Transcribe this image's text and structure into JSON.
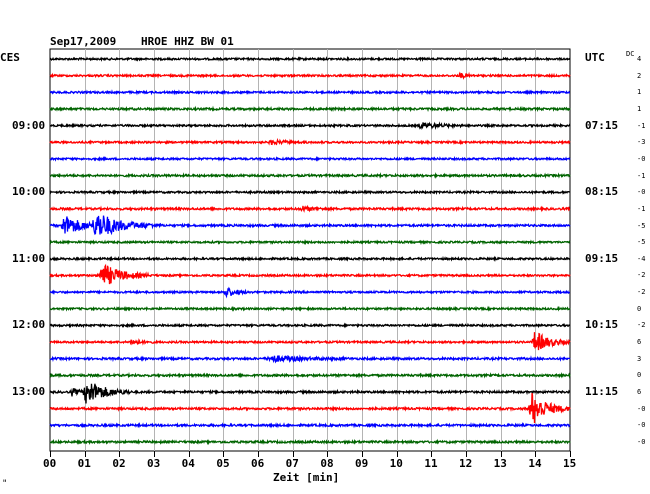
{
  "header": {
    "date": "Sep17,2009",
    "station": "HROE HHZ BW 01",
    "left_tz": "CES",
    "right_tz": "UTC",
    "dc_label": "DC"
  },
  "footer": {
    "xlabel": "Zeit [min]",
    "corner_mark": "\""
  },
  "chart_data": {
    "type": "seismogram",
    "xlabel": "Zeit [min]",
    "xlim": [
      0,
      15
    ],
    "x_ticks": [
      "00",
      "01",
      "02",
      "03",
      "04",
      "05",
      "06",
      "07",
      "08",
      "09",
      "10",
      "11",
      "12",
      "13",
      "14",
      "15"
    ],
    "grid": true,
    "line_minutes": 15,
    "colors": [
      "#000000",
      "#ff0000",
      "#0000ff",
      "#006400"
    ],
    "left_hour_labels": [
      {
        "line": 4,
        "text": "09:00"
      },
      {
        "line": 8,
        "text": "10:00"
      },
      {
        "line": 12,
        "text": "11:00"
      },
      {
        "line": 16,
        "text": "12:00"
      },
      {
        "line": 20,
        "text": "13:00"
      }
    ],
    "right_hour_labels": [
      {
        "line": 4,
        "text": "07:15"
      },
      {
        "line": 8,
        "text": "08:15"
      },
      {
        "line": 12,
        "text": "09:15"
      },
      {
        "line": 16,
        "text": "10:15"
      },
      {
        "line": 20,
        "text": "11:15"
      }
    ],
    "dc_offsets": [
      "4",
      "2",
      "1",
      "1",
      "-1",
      "-3",
      "-0",
      "-1",
      "-0",
      "-1",
      "-5",
      "-5",
      "-4",
      "-2",
      "-2",
      "0",
      "-2",
      "6",
      "3",
      "0",
      "6",
      "-0",
      "-0",
      "-0"
    ],
    "traces": [
      {
        "line": 0,
        "noise": 0.9,
        "events": []
      },
      {
        "line": 1,
        "noise": 0.9,
        "events": [
          {
            "t": 11.8,
            "amp": 2.5,
            "dur": 0.5
          }
        ]
      },
      {
        "line": 2,
        "noise": 0.9,
        "events": []
      },
      {
        "line": 3,
        "noise": 1.0,
        "events": []
      },
      {
        "line": 4,
        "noise": 0.9,
        "events": [
          {
            "t": 10.6,
            "amp": 3,
            "dur": 1.4
          }
        ]
      },
      {
        "line": 5,
        "noise": 0.9,
        "events": [
          {
            "t": 6.3,
            "amp": 2,
            "dur": 1.2
          }
        ]
      },
      {
        "line": 6,
        "noise": 0.9,
        "events": []
      },
      {
        "line": 7,
        "noise": 1.0,
        "events": []
      },
      {
        "line": 8,
        "noise": 0.9,
        "events": []
      },
      {
        "line": 9,
        "noise": 1.0,
        "events": [
          {
            "t": 7.2,
            "amp": 2.5,
            "dur": 0.8
          }
        ]
      },
      {
        "line": 10,
        "noise": 1.0,
        "events": [
          {
            "t": 0.3,
            "amp": 10,
            "dur": 1.5
          },
          {
            "t": 1.2,
            "amp": 12,
            "dur": 2.0
          }
        ]
      },
      {
        "line": 11,
        "noise": 0.9,
        "events": []
      },
      {
        "line": 12,
        "noise": 0.9,
        "events": []
      },
      {
        "line": 13,
        "noise": 0.9,
        "events": [
          {
            "t": 1.4,
            "amp": 12,
            "dur": 1.5
          }
        ]
      },
      {
        "line": 14,
        "noise": 0.9,
        "events": [
          {
            "t": 5.0,
            "amp": 5,
            "dur": 0.8
          }
        ]
      },
      {
        "line": 15,
        "noise": 0.9,
        "events": []
      },
      {
        "line": 16,
        "noise": 0.9,
        "events": []
      },
      {
        "line": 17,
        "noise": 0.9,
        "events": [
          {
            "t": 2.3,
            "amp": 3,
            "dur": 0.7
          },
          {
            "t": 13.9,
            "amp": 11,
            "dur": 1.1
          }
        ]
      },
      {
        "line": 18,
        "noise": 1.0,
        "events": [
          {
            "t": 6.2,
            "amp": 3,
            "dur": 2.5
          }
        ]
      },
      {
        "line": 19,
        "noise": 1.0,
        "events": []
      },
      {
        "line": 20,
        "noise": 1.0,
        "events": [
          {
            "t": 0.6,
            "amp": 4,
            "dur": 0.5
          },
          {
            "t": 0.95,
            "amp": 13,
            "dur": 1.4
          }
        ]
      },
      {
        "line": 21,
        "noise": 1.0,
        "events": [
          {
            "t": 13.8,
            "amp": 17,
            "dur": 1.2
          }
        ]
      },
      {
        "line": 22,
        "noise": 1.0,
        "events": []
      },
      {
        "line": 23,
        "noise": 1.0,
        "events": []
      }
    ]
  }
}
